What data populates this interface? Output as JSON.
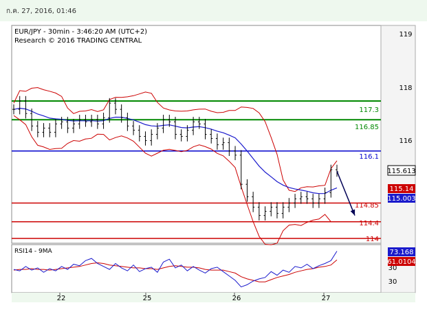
{
  "header": {
    "timestamp": "ก.ค. 27, 2016, 01:46"
  },
  "colors": {
    "support_resistance": "#008800",
    "pivot": "#0000cc",
    "target": "#cc0000",
    "price": "#000000",
    "ma_fast": "#1a1acc",
    "ma_slow": "#cc0000",
    "bollinger": "#cc0000",
    "arrow": "#000055"
  },
  "chart_data": [
    {
      "type": "line",
      "title": "EUR/JPY - 30min - 3:46:20 AM (UTC+2)",
      "subtitle": "Research © 2016 TRADING CENTRAL",
      "ylim": [
        113.9,
        119.1
      ],
      "y_ticks": [
        "119",
        "118",
        "116"
      ],
      "x_ticks": [
        "22",
        "25",
        "26",
        "27"
      ],
      "grid": false,
      "levels": [
        {
          "label": "117.3",
          "value": 117.3,
          "kind": "resistance"
        },
        {
          "label": "116.85",
          "value": 116.85,
          "kind": "resistance"
        },
        {
          "label": "116.1",
          "value": 116.1,
          "kind": "pivot"
        },
        {
          "label": "114.85",
          "value": 114.85,
          "kind": "support"
        },
        {
          "label": "114.4",
          "value": 114.4,
          "kind": "support"
        },
        {
          "label": "114",
          "value": 114.0,
          "kind": "support"
        }
      ],
      "last_price": {
        "label": "115.613",
        "value": 115.613
      },
      "indicator_tags": [
        {
          "label": "115.14",
          "value": 115.14,
          "color": "#cc0000"
        },
        {
          "label": "115.003",
          "value": 115.003,
          "color": "#1a1acc"
        }
      ],
      "series": [
        {
          "values": [
            117.1,
            117.3,
            117.0,
            116.7,
            116.55,
            116.65,
            116.55,
            116.75,
            116.8,
            116.65,
            116.75,
            116.85,
            116.8,
            116.85,
            116.75,
            116.9,
            117.25,
            117.1,
            116.9,
            116.7,
            116.6,
            116.45,
            116.35,
            116.5,
            116.65,
            116.85,
            116.8,
            116.5,
            116.45,
            116.6,
            116.8,
            116.75,
            116.5,
            116.4,
            116.25,
            116.3,
            116.1,
            116.0,
            115.3,
            115.0,
            114.75,
            114.55,
            114.65,
            114.75,
            114.6,
            114.75,
            114.85,
            114.95,
            115.0,
            114.95,
            114.85,
            114.95,
            115.1,
            115.65,
            115.6
          ]
        }
      ],
      "forecast": {
        "from": 115.613,
        "to": 114.55
      }
    },
    {
      "type": "line",
      "title": "RSI14 - 9MA",
      "ylim": [
        18,
        80
      ],
      "y_ticks": [
        "30",
        "30"
      ],
      "value_tags": [
        {
          "label": "73.168",
          "value": 73.168,
          "color": "#1a1acc"
        },
        {
          "label": "61.0104",
          "value": 61.0104,
          "color": "#cc0000"
        }
      ],
      "series": [
        {
          "values": [
            48,
            46,
            52,
            47,
            50,
            44,
            49,
            46,
            52,
            48,
            55,
            53,
            60,
            63,
            56,
            52,
            48,
            56,
            50,
            46,
            54,
            45,
            49,
            51,
            44,
            58,
            62,
            50,
            54,
            46,
            52,
            47,
            43,
            49,
            51,
            45,
            39,
            33,
            24,
            27,
            32,
            35,
            37,
            45,
            40,
            47,
            44,
            52,
            50,
            55,
            49,
            53,
            56,
            60,
            73
          ]
        },
        {
          "values": [
            47,
            48,
            48,
            49,
            48,
            48,
            47,
            48,
            49,
            50,
            51,
            52,
            54,
            56,
            57,
            56,
            54,
            53,
            52,
            51,
            50,
            50,
            49,
            49,
            48,
            50,
            52,
            53,
            52,
            51,
            51,
            50,
            48,
            47,
            47,
            47,
            45,
            43,
            38,
            35,
            33,
            31,
            31,
            34,
            37,
            39,
            41,
            44,
            46,
            48,
            49,
            51,
            52,
            54,
            61
          ]
        }
      ]
    }
  ]
}
